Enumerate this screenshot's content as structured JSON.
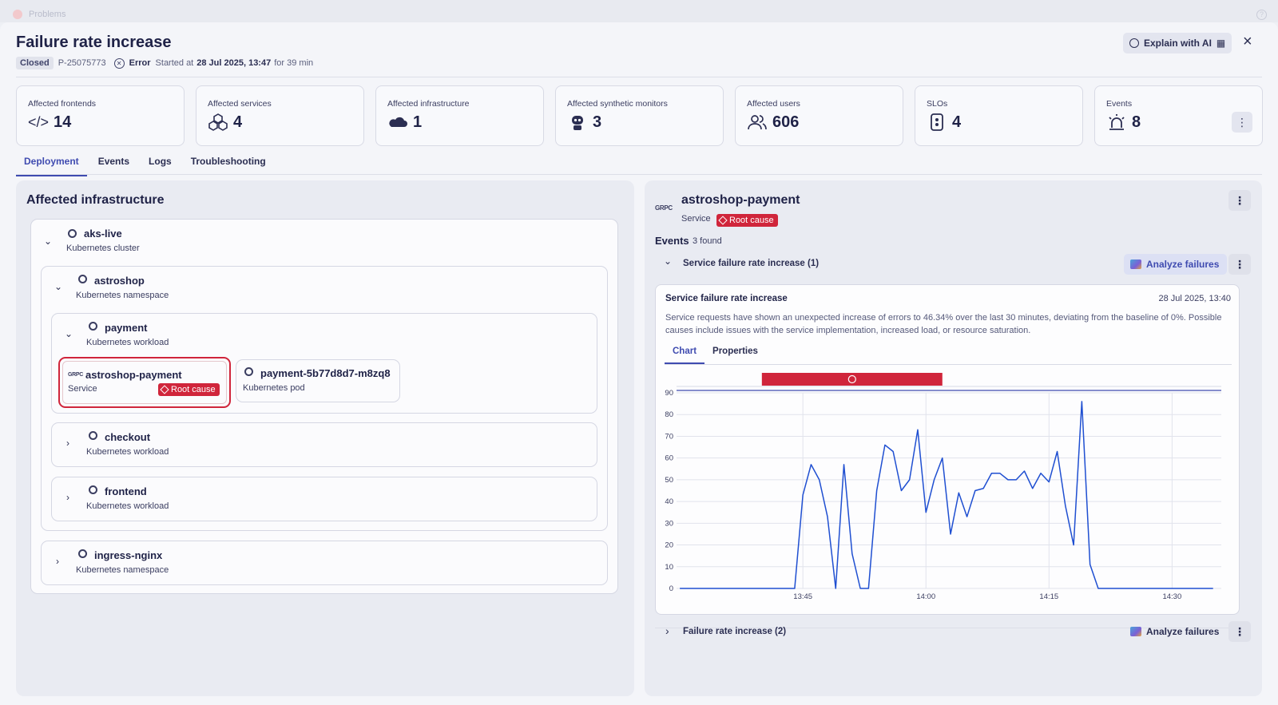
{
  "app": {
    "title": "Problems"
  },
  "problem": {
    "title": "Failure rate increase",
    "status": "Closed",
    "id": "P-25075773",
    "severity": "Error",
    "started_label": "Started at",
    "started_at": "28 Jul 2025, 13:47",
    "duration": "for 39 min"
  },
  "header": {
    "explain_ai": "Explain with AI"
  },
  "cards": [
    {
      "label": "Affected frontends",
      "value": "14",
      "icon": "code-icon"
    },
    {
      "label": "Affected services",
      "value": "4",
      "icon": "cubes-icon"
    },
    {
      "label": "Affected infrastructure",
      "value": "1",
      "icon": "cloud-icon"
    },
    {
      "label": "Affected synthetic monitors",
      "value": "3",
      "icon": "robot-icon"
    },
    {
      "label": "Affected users",
      "value": "606",
      "icon": "users-icon"
    },
    {
      "label": "SLOs",
      "value": "4",
      "icon": "slo-icon"
    },
    {
      "label": "Events",
      "value": "8",
      "icon": "alarm-icon"
    }
  ],
  "tabs": [
    "Deployment",
    "Events",
    "Logs",
    "Troubleshooting"
  ],
  "left": {
    "title": "Affected infrastructure",
    "cluster": {
      "name": "aks-live",
      "type": "Kubernetes cluster"
    },
    "namespace": {
      "name": "astroshop",
      "type": "Kubernetes namespace"
    },
    "workload_payment": {
      "name": "payment",
      "type": "Kubernetes workload"
    },
    "service": {
      "name": "astroshop-payment",
      "type": "Service",
      "badge": "Root cause",
      "logo": "GRPC"
    },
    "pod": {
      "name": "payment-5b77d8d7-m8zq8",
      "type": "Kubernetes pod"
    },
    "workload_checkout": {
      "name": "checkout",
      "type": "Kubernetes workload"
    },
    "workload_frontend": {
      "name": "frontend",
      "type": "Kubernetes workload"
    },
    "namespace_ingress": {
      "name": "ingress-nginx",
      "type": "Kubernetes namespace"
    }
  },
  "right": {
    "title": "astroshop-payment",
    "logo": "GRPC",
    "type": "Service",
    "badge": "Root cause",
    "events_label": "Events",
    "events_count": "3 found",
    "event1": {
      "label": "Service failure rate increase (1)",
      "analyze": "Analyze failures"
    },
    "card": {
      "title": "Service failure rate increase",
      "date": "28 Jul 2025, 13:40",
      "description": "Service requests have shown an unexpected increase of errors to 46.34% over the last 30 minutes, deviating from the baseline of 0%. Possible causes include issues with the service implementation, increased load, or resource saturation.",
      "tabs": [
        "Chart",
        "Properties"
      ]
    },
    "event2": {
      "label": "Failure rate increase (2)",
      "analyze": "Analyze failures"
    }
  },
  "chart_data": {
    "type": "line",
    "title": "",
    "ylim": [
      0,
      90
    ],
    "yticks": [
      0,
      10,
      20,
      30,
      40,
      50,
      60,
      70,
      80,
      90
    ],
    "xticks": [
      "13:45",
      "14:00",
      "14:15",
      "14:30"
    ],
    "xrange_minutes": [
      13.0,
      14.5
    ],
    "series": [
      {
        "color": "#1f4fd1",
        "x": [
          "13:30",
          "13:44",
          "13:45",
          "13:46",
          "13:47",
          "13:48",
          "13:49",
          "13:50",
          "13:51",
          "13:52",
          "13:53",
          "13:54",
          "13:55",
          "13:56",
          "13:57",
          "13:58",
          "13:59",
          "14:00",
          "14:01",
          "14:02",
          "14:03",
          "14:04",
          "14:05",
          "14:06",
          "14:07",
          "14:08",
          "14:09",
          "14:10",
          "14:11",
          "14:12",
          "14:13",
          "14:14",
          "14:15",
          "14:16",
          "14:17",
          "14:18",
          "14:19",
          "14:20",
          "14:21",
          "14:22",
          "14:23",
          "14:24",
          "14:35"
        ],
        "y": [
          0,
          0,
          43,
          57,
          50,
          33,
          0,
          57,
          16,
          0,
          0,
          45,
          66,
          63,
          45,
          50,
          73,
          35,
          50,
          60,
          25,
          44,
          33,
          45,
          46,
          53,
          53,
          50,
          50,
          54,
          46,
          53,
          49,
          63,
          38,
          20,
          86,
          11,
          0,
          0,
          0,
          0,
          0
        ]
      }
    ],
    "alert_band": {
      "from": "13:40",
      "to": "14:02",
      "color": "#d0253b"
    }
  }
}
